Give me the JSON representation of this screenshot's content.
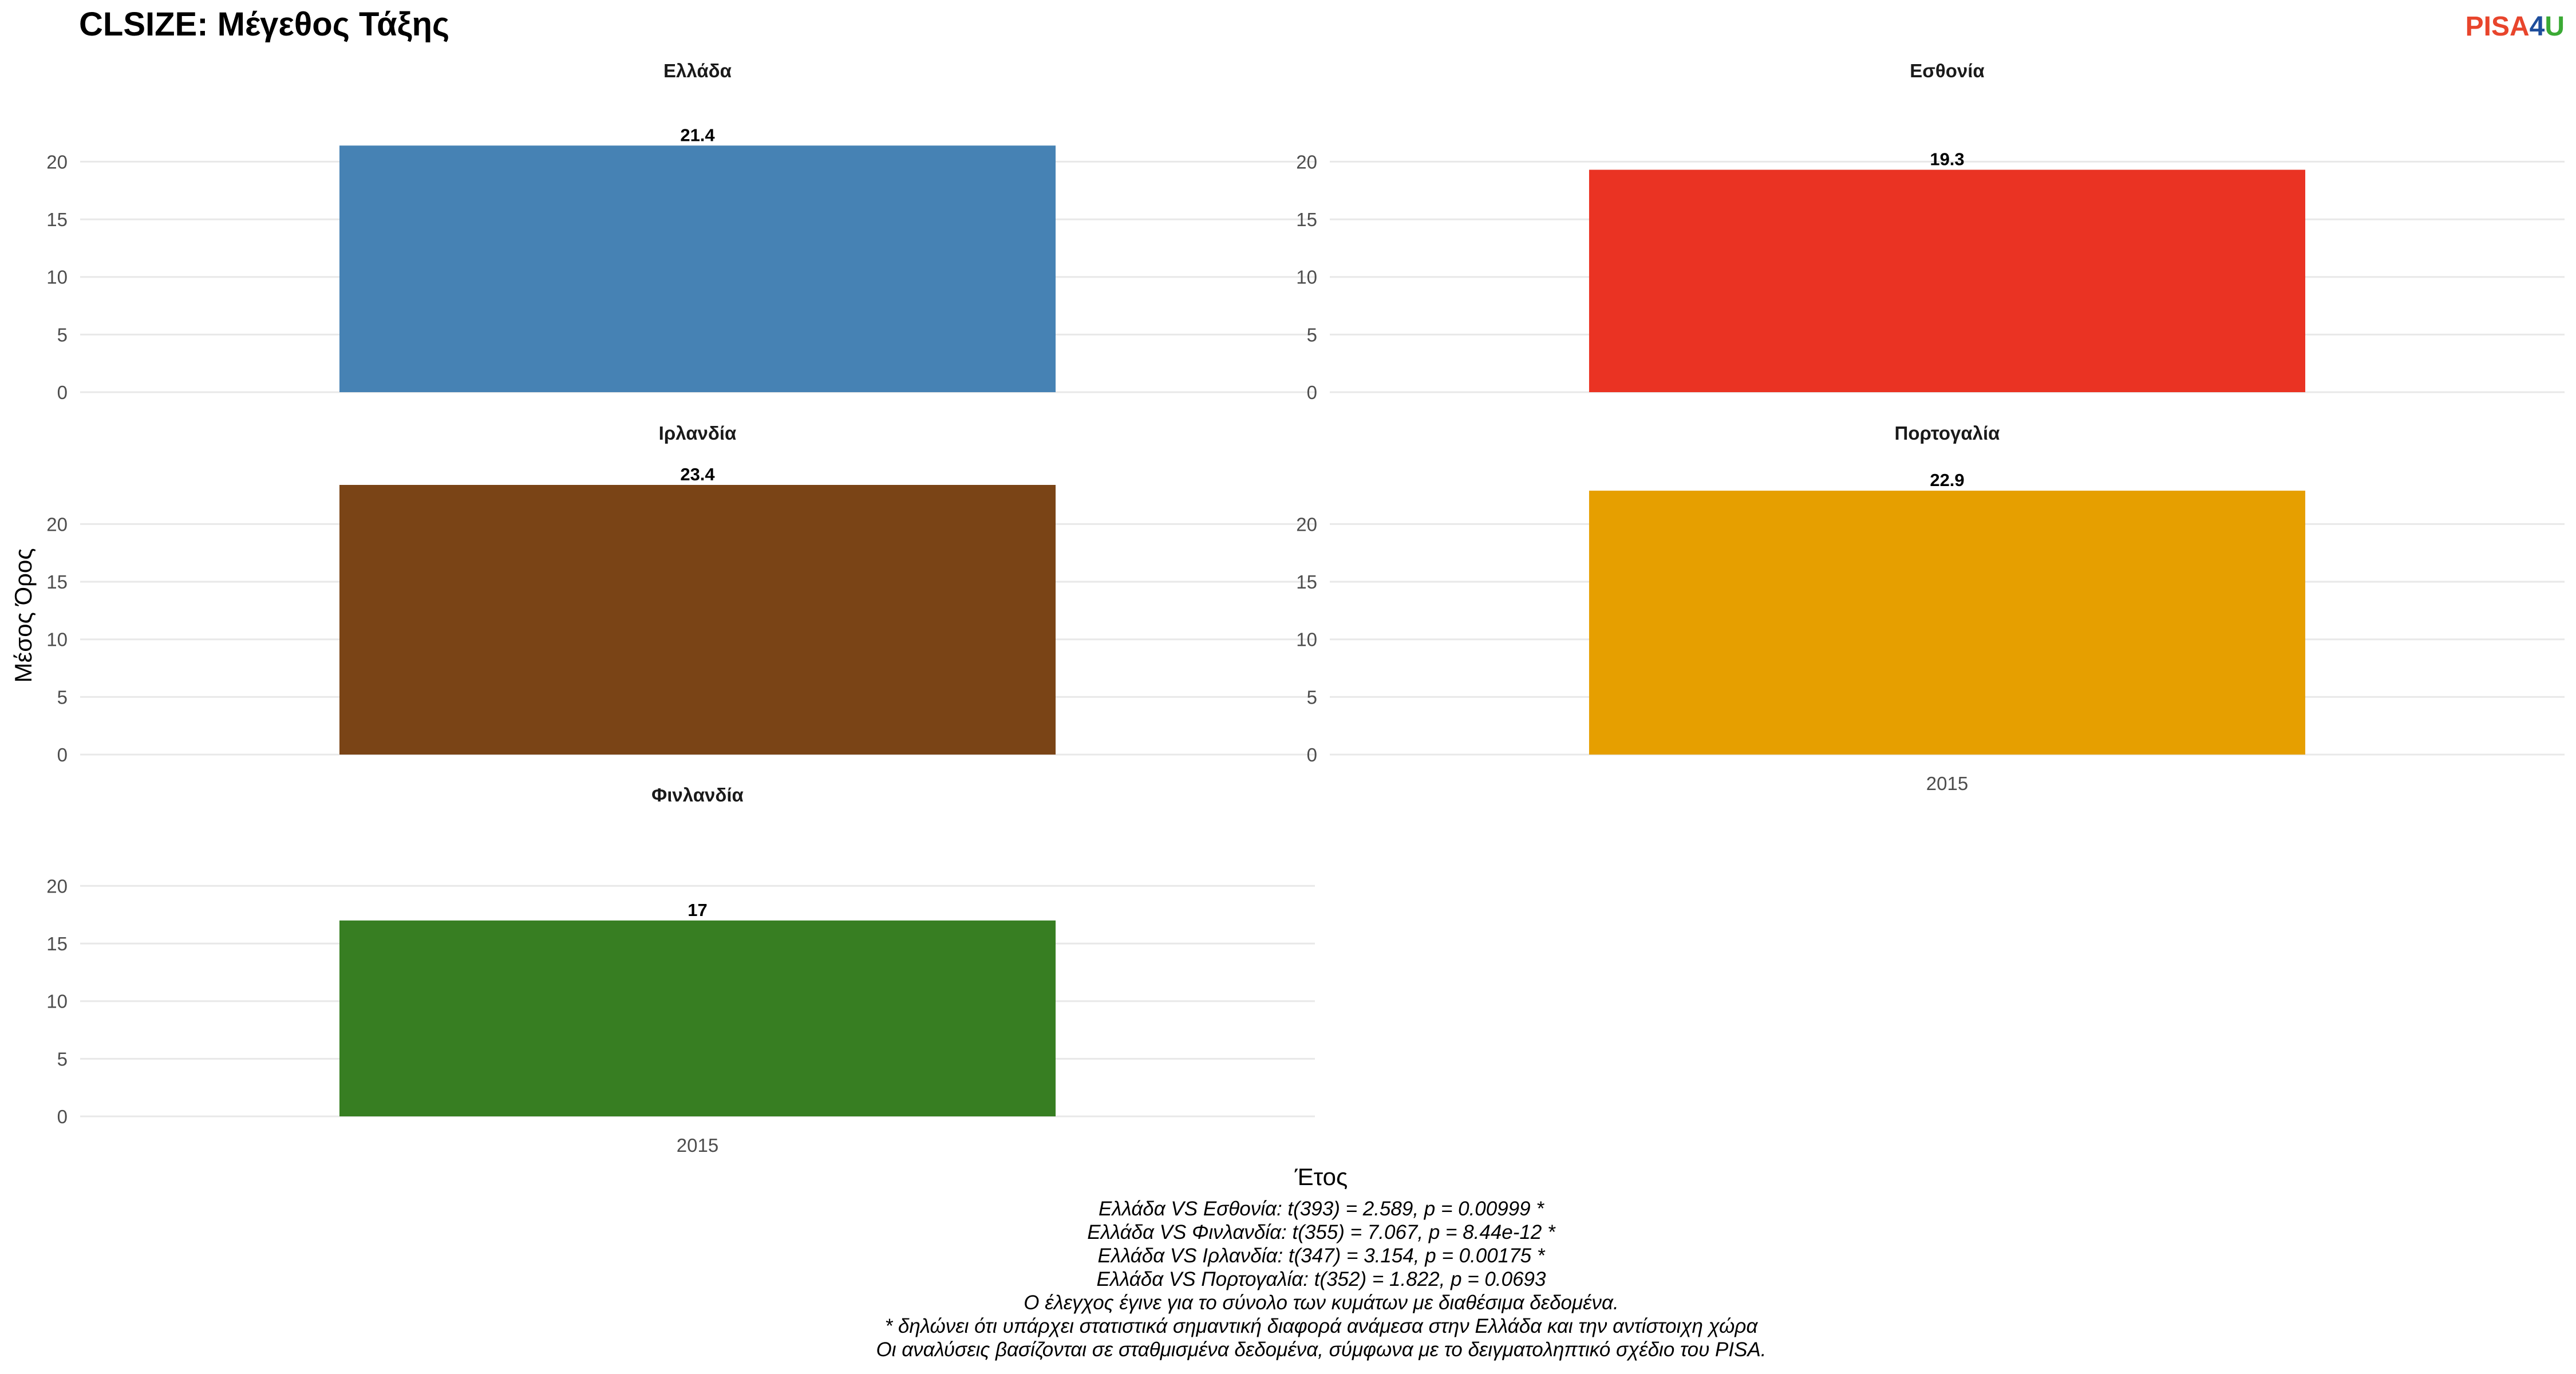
{
  "chart_data": {
    "type": "bar",
    "title": "CLSIZE: Μέγεθος Τάξης",
    "xlabel": "Έτος",
    "ylabel": "Μέσος Όρος",
    "ylim": [
      0,
      23.4
    ],
    "yticks": [
      0,
      5,
      10,
      15,
      20
    ],
    "grid": true,
    "facets": [
      {
        "name": "Ελλάδα",
        "category": "2015",
        "value": 21.4,
        "label": "21.4",
        "color": "#4682B4"
      },
      {
        "name": "Εσθονία",
        "category": "2015",
        "value": 19.3,
        "label": "19.3",
        "color": "#EA3323"
      },
      {
        "name": "Ιρλανδία",
        "category": "2015",
        "value": 23.4,
        "label": "23.4",
        "color": "#7A4416"
      },
      {
        "name": "Πορτογαλία",
        "category": "2015",
        "value": 22.9,
        "label": "22.9",
        "color": "#E69F00"
      },
      {
        "name": "Φινλανδία",
        "category": "2015",
        "value": 17,
        "label": "17",
        "color": "#377E22"
      }
    ],
    "caption": [
      "Ελλάδα VS Εσθονία: t(393) = 2.589, p = 0.00999 *",
      "Ελλάδα VS Φινλανδία: t(355) = 7.067, p = 8.44e-12 *",
      "Ελλάδα VS Ιρλανδία: t(347) = 3.154, p = 0.00175 *",
      "Ελλάδα VS Πορτογαλία: t(352) = 1.822, p = 0.0693",
      "Ο έλεγχος έγινε για το σύνολο των κυμάτων με διαθέσιμα δεδομένα.",
      "* δηλώνει ότι υπάρχει στατιστικά σημαντική διαφορά ανάμεσα στην Ελλάδα και την αντίστοιχη χώρα",
      "Οι αναλύσεις βασίζονται σε σταθμισμένα δεδομένα, σύμφωνα με το δειγματοληπτικό σχέδιο του PISA."
    ]
  },
  "logo": {
    "pisa": "PISA",
    "four": "4",
    "u": "U",
    "pisa_color": "#E8452C",
    "four_color": "#1F4E9C",
    "u_color": "#3BAA35"
  }
}
